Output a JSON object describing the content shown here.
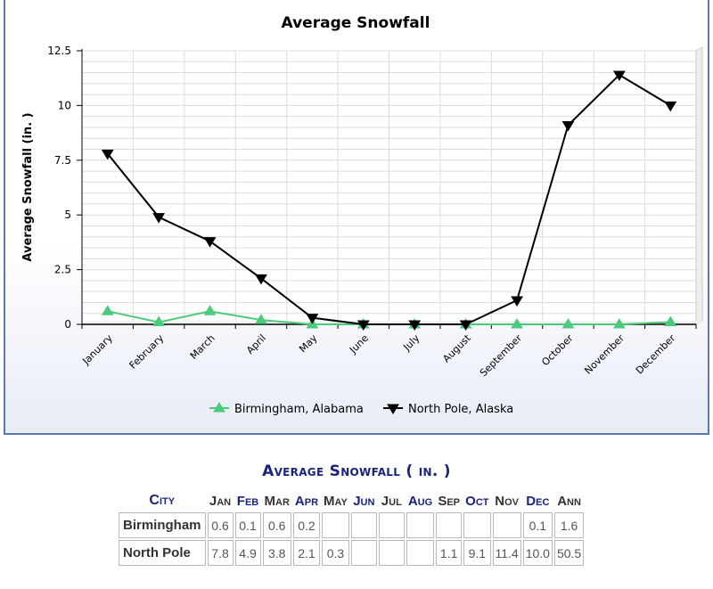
{
  "chart_data": {
    "type": "line",
    "title": "Average Snowfall",
    "ylabel": "Average Snowfall (in. )",
    "xlabel": "",
    "ylim": [
      0,
      12.5
    ],
    "yticks": [
      "0",
      "2.5",
      "5",
      "7.5",
      "10",
      "12.5"
    ],
    "categories": [
      "January",
      "February",
      "March",
      "April",
      "May",
      "June",
      "July",
      "August",
      "September",
      "October",
      "November",
      "December"
    ],
    "series": [
      {
        "name": "Birmingham, Alabama",
        "color": "#4cca7c",
        "marker": "triangle-up",
        "values": [
          0.6,
          0.1,
          0.6,
          0.2,
          0,
          0,
          0,
          0,
          0,
          0,
          0,
          0.1
        ]
      },
      {
        "name": "North Pole, Alaska",
        "color": "#000000",
        "marker": "triangle-down",
        "values": [
          7.8,
          4.9,
          3.8,
          2.1,
          0.3,
          0,
          0,
          0,
          1.1,
          9.1,
          11.4,
          10.0
        ]
      }
    ],
    "grid": true,
    "legend_position": "bottom"
  },
  "table": {
    "title": "Average Snowfall ( in. )",
    "headers": [
      "City",
      "Jan",
      "Feb",
      "Mar",
      "Apr",
      "May",
      "Jun",
      "Jul",
      "Aug",
      "Sep",
      "Oct",
      "Nov",
      "Dec",
      "Ann"
    ],
    "header_blue": [
      true,
      false,
      true,
      false,
      true,
      false,
      true,
      false,
      true,
      false,
      true,
      false,
      true,
      false
    ],
    "rows": [
      {
        "city": "Birmingham",
        "values": [
          "0.6",
          "0.1",
          "0.6",
          "0.2",
          "",
          "",
          "",
          "",
          "",
          "",
          "",
          "0.1",
          "1.6"
        ]
      },
      {
        "city": "North Pole",
        "values": [
          "7.8",
          "4.9",
          "3.8",
          "2.1",
          "0.3",
          "",
          "",
          "",
          "1.1",
          "9.1",
          "11.4",
          "10.0",
          "50.5"
        ]
      }
    ]
  }
}
